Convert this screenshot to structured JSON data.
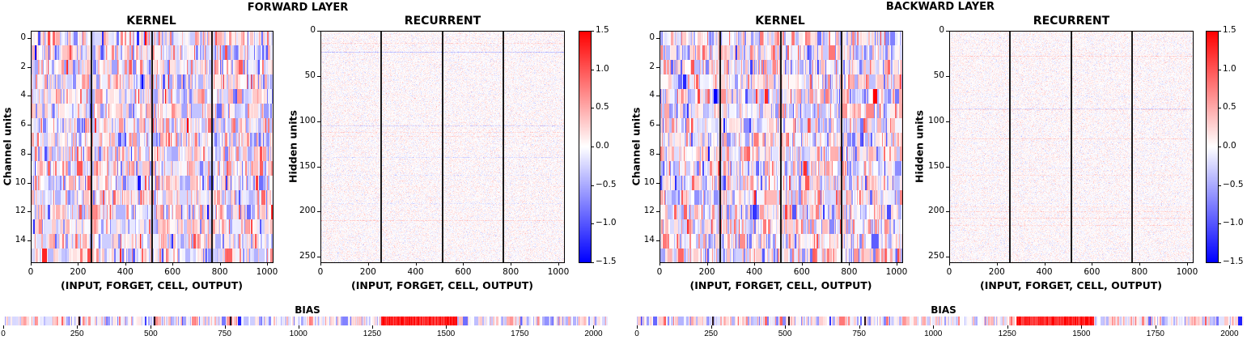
{
  "chart_data": [
    {
      "type": "heatmap",
      "group": "FORWARD LAYER",
      "title": "KERNEL",
      "xlabel": "(INPUT, FORGET, CELL, OUTPUT)",
      "ylabel": "Channel units",
      "xlim": [
        0,
        1024
      ],
      "ylim": [
        16,
        0
      ],
      "xticks": [
        "0",
        "200",
        "400",
        "600",
        "800",
        "1000"
      ],
      "yticks": [
        "0",
        "2",
        "4",
        "6",
        "8",
        "10",
        "12",
        "14"
      ],
      "rows": 16,
      "cols": 1024,
      "gate_boundaries": [
        256,
        512,
        768
      ],
      "value_range": [
        -1.5,
        1.5
      ],
      "intensity": "high"
    },
    {
      "type": "heatmap",
      "group": "FORWARD LAYER",
      "title": "RECURRENT",
      "xlabel": "(INPUT, FORGET, CELL, OUTPUT)",
      "ylabel": "Hidden units",
      "xlim": [
        0,
        1024
      ],
      "ylim": [
        256,
        0
      ],
      "xticks": [
        "0",
        "200",
        "400",
        "600",
        "800",
        "1000"
      ],
      "yticks": [
        "0",
        "50",
        "100",
        "150",
        "200",
        "250"
      ],
      "rows": 256,
      "cols": 1024,
      "gate_boundaries": [
        256,
        512,
        768
      ],
      "value_range": [
        -1.5,
        1.5
      ],
      "intensity": "low"
    },
    {
      "type": "heatmap",
      "group": "BACKWARD LAYER",
      "title": "KERNEL",
      "xlabel": "(INPUT, FORGET, CELL, OUTPUT)",
      "ylabel": "Channel units",
      "xlim": [
        0,
        1024
      ],
      "ylim": [
        16,
        0
      ],
      "xticks": [
        "0",
        "200",
        "400",
        "600",
        "800",
        "1000"
      ],
      "yticks": [
        "0",
        "2",
        "4",
        "6",
        "8",
        "10",
        "12",
        "14"
      ],
      "rows": 16,
      "cols": 1024,
      "gate_boundaries": [
        256,
        512,
        768
      ],
      "value_range": [
        -1.5,
        1.5
      ],
      "intensity": "high"
    },
    {
      "type": "heatmap",
      "group": "BACKWARD LAYER",
      "title": "RECURRENT",
      "xlabel": "(INPUT, FORGET, CELL, OUTPUT)",
      "ylabel": "Hidden units",
      "xlim": [
        0,
        1024
      ],
      "ylim": [
        256,
        0
      ],
      "xticks": [
        "0",
        "200",
        "400",
        "600",
        "800",
        "1000"
      ],
      "yticks": [
        "0",
        "50",
        "100",
        "150",
        "200",
        "250"
      ],
      "rows": 256,
      "cols": 1024,
      "gate_boundaries": [
        256,
        512,
        768
      ],
      "value_range": [
        -1.5,
        1.5
      ],
      "intensity": "low"
    },
    {
      "type": "heatmap",
      "group": "FORWARD LAYER",
      "title": "BIAS",
      "xlim": [
        0,
        2048
      ],
      "xticks": [
        "0",
        "250",
        "500",
        "750",
        "1000",
        "1250",
        "1500",
        "1750",
        "2000"
      ],
      "cols": 2048,
      "gate_boundaries": [
        256,
        512,
        768
      ],
      "strong_positive_range": [
        1280,
        1536
      ],
      "value_range": [
        -1.5,
        1.5
      ]
    },
    {
      "type": "heatmap",
      "group": "BACKWARD LAYER",
      "title": "BIAS",
      "xlim": [
        0,
        2048
      ],
      "xticks": [
        "0",
        "250",
        "500",
        "750",
        "1000",
        "1250",
        "1500",
        "1750",
        "2000"
      ],
      "cols": 2048,
      "gate_boundaries": [
        256,
        512,
        768
      ],
      "strong_positive_range": [
        1280,
        1536
      ],
      "value_range": [
        -1.5,
        1.5
      ]
    }
  ],
  "colorbar": {
    "colormap": "bwr",
    "ticks": [
      "1.5",
      "1.0",
      "0.5",
      "0.0",
      "−0.5",
      "−1.0",
      "−1.5"
    ],
    "range": [
      -1.5,
      1.5
    ],
    "low_color": "#0000ff",
    "mid_color": "#ffffff",
    "high_color": "#ff0000"
  },
  "titles": {
    "forward": "FORWARD LAYER",
    "backward": "BACKWARD LAYER",
    "bias": "BIAS"
  }
}
